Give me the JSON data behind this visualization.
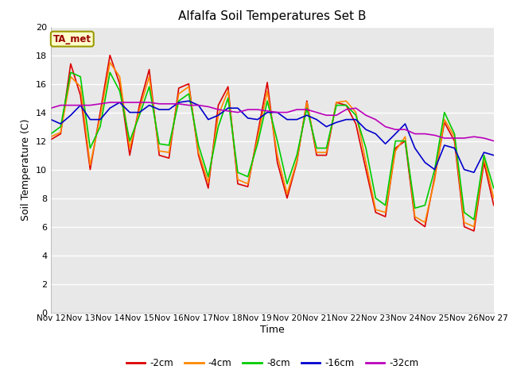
{
  "title": "Alfalfa Soil Temperatures Set B",
  "xlabel": "Time",
  "ylabel": "Soil Temperature (C)",
  "ylim": [
    0,
    20
  ],
  "yticks": [
    0,
    2,
    4,
    6,
    8,
    10,
    12,
    14,
    16,
    18,
    20
  ],
  "fig_bg": "#ffffff",
  "plot_bg": "#e8e8e8",
  "grid_color": "#ffffff",
  "annotation_text": "TA_met",
  "annotation_bg": "#ffffcc",
  "annotation_fg": "#990000",
  "annotation_border": "#999900",
  "x_labels": [
    "Nov 12",
    "Nov 13",
    "Nov 14",
    "Nov 15",
    "Nov 16",
    "Nov 17",
    "Nov 18",
    "Nov 19",
    "Nov 20",
    "Nov 21",
    "Nov 22",
    "Nov 23",
    "Nov 24",
    "Nov 25",
    "Nov 26",
    "Nov 27"
  ],
  "series_order": [
    "-2cm",
    "-4cm",
    "-8cm",
    "-16cm",
    "-32cm"
  ],
  "series": {
    "-2cm": {
      "color": "#dd0000",
      "lw": 1.2,
      "x": [
        0,
        0.33,
        0.67,
        1.0,
        1.33,
        1.67,
        2.0,
        2.33,
        2.67,
        3.0,
        3.33,
        3.67,
        4.0,
        4.33,
        4.67,
        5.0,
        5.33,
        5.67,
        6.0,
        6.33,
        6.67,
        7.0,
        7.33,
        7.67,
        8.0,
        8.33,
        8.67,
        9.0,
        9.33,
        9.67,
        10.0,
        10.33,
        10.67,
        11.0,
        11.33,
        11.67,
        12.0,
        12.33,
        12.67,
        13.0,
        13.33,
        13.67,
        14.0,
        14.33,
        14.67,
        15.0
      ],
      "y": [
        12.1,
        12.5,
        17.4,
        15.2,
        10.0,
        14.0,
        18.0,
        16.0,
        11.0,
        14.5,
        17.0,
        11.0,
        10.8,
        15.7,
        16.0,
        11.0,
        8.7,
        14.5,
        15.8,
        9.0,
        8.8,
        12.5,
        16.1,
        10.5,
        8.0,
        10.5,
        14.8,
        11.0,
        11.0,
        14.7,
        14.5,
        13.2,
        10.0,
        7.0,
        6.7,
        11.5,
        12.0,
        6.5,
        6.0,
        9.5,
        13.3,
        12.0,
        6.0,
        5.7,
        10.5,
        7.5
      ]
    },
    "-4cm": {
      "color": "#ff8800",
      "lw": 1.2,
      "x": [
        0,
        0.33,
        0.67,
        1.0,
        1.33,
        1.67,
        2.0,
        2.33,
        2.67,
        3.0,
        3.33,
        3.67,
        4.0,
        4.33,
        4.67,
        5.0,
        5.33,
        5.67,
        6.0,
        6.33,
        6.67,
        7.0,
        7.33,
        7.67,
        8.0,
        8.33,
        8.67,
        9.0,
        9.33,
        9.67,
        10.0,
        10.33,
        10.67,
        11.0,
        11.33,
        11.67,
        12.0,
        12.33,
        12.67,
        13.0,
        13.33,
        13.67,
        14.0,
        14.33,
        14.67,
        15.0
      ],
      "y": [
        12.3,
        12.6,
        16.5,
        15.8,
        10.3,
        13.7,
        17.5,
        16.5,
        11.5,
        14.2,
        16.5,
        11.3,
        11.2,
        15.3,
        15.8,
        11.2,
        9.1,
        13.8,
        15.5,
        9.3,
        9.0,
        12.2,
        15.5,
        11.0,
        8.3,
        10.6,
        14.7,
        11.2,
        11.2,
        14.7,
        14.8,
        14.0,
        10.5,
        7.2,
        7.0,
        11.3,
        12.3,
        6.7,
        6.3,
        9.3,
        13.5,
        12.3,
        6.3,
        6.0,
        10.8,
        8.0
      ]
    },
    "-8cm": {
      "color": "#00cc00",
      "lw": 1.2,
      "x": [
        0,
        0.33,
        0.67,
        1.0,
        1.33,
        1.67,
        2.0,
        2.33,
        2.67,
        3.0,
        3.33,
        3.67,
        4.0,
        4.33,
        4.67,
        5.0,
        5.33,
        5.67,
        6.0,
        6.33,
        6.67,
        7.0,
        7.33,
        7.67,
        8.0,
        8.33,
        8.67,
        9.0,
        9.33,
        9.67,
        10.0,
        10.33,
        10.67,
        11.0,
        11.33,
        11.67,
        12.0,
        12.33,
        12.67,
        13.0,
        13.33,
        13.67,
        14.0,
        14.33,
        14.67,
        15.0
      ],
      "y": [
        12.5,
        13.0,
        16.8,
        16.5,
        11.5,
        13.0,
        16.8,
        15.5,
        12.0,
        13.8,
        15.8,
        11.8,
        11.7,
        14.8,
        15.3,
        11.7,
        9.5,
        13.0,
        15.0,
        9.8,
        9.5,
        11.8,
        14.8,
        12.0,
        9.0,
        11.0,
        14.3,
        11.5,
        11.5,
        14.5,
        14.5,
        13.8,
        11.5,
        8.0,
        7.5,
        12.0,
        12.0,
        7.3,
        7.5,
        10.0,
        14.0,
        12.5,
        7.0,
        6.5,
        11.0,
        8.7
      ]
    },
    "-16cm": {
      "color": "#0000cc",
      "lw": 1.2,
      "x": [
        0,
        0.33,
        0.67,
        1.0,
        1.33,
        1.67,
        2.0,
        2.33,
        2.67,
        3.0,
        3.33,
        3.67,
        4.0,
        4.33,
        4.67,
        5.0,
        5.33,
        5.67,
        6.0,
        6.33,
        6.67,
        7.0,
        7.33,
        7.67,
        8.0,
        8.33,
        8.67,
        9.0,
        9.33,
        9.67,
        10.0,
        10.33,
        10.67,
        11.0,
        11.33,
        11.67,
        12.0,
        12.33,
        12.67,
        13.0,
        13.33,
        13.67,
        14.0,
        14.33,
        14.67,
        15.0
      ],
      "y": [
        13.5,
        13.2,
        13.8,
        14.5,
        13.5,
        13.5,
        14.3,
        14.7,
        14.0,
        14.0,
        14.5,
        14.2,
        14.2,
        14.7,
        14.8,
        14.5,
        13.5,
        13.8,
        14.3,
        14.3,
        13.6,
        13.5,
        14.0,
        14.0,
        13.5,
        13.5,
        13.8,
        13.5,
        13.0,
        13.3,
        13.5,
        13.5,
        12.8,
        12.5,
        11.8,
        12.5,
        13.2,
        11.5,
        10.5,
        10.0,
        11.7,
        11.5,
        10.0,
        9.8,
        11.2,
        11.0
      ]
    },
    "-32cm": {
      "color": "#bb00bb",
      "lw": 1.2,
      "x": [
        0,
        0.33,
        0.67,
        1.0,
        1.33,
        1.67,
        2.0,
        2.33,
        2.67,
        3.0,
        3.33,
        3.67,
        4.0,
        4.33,
        4.67,
        5.0,
        5.33,
        5.67,
        6.0,
        6.33,
        6.67,
        7.0,
        7.33,
        7.67,
        8.0,
        8.33,
        8.67,
        9.0,
        9.33,
        9.67,
        10.0,
        10.33,
        10.67,
        11.0,
        11.33,
        11.67,
        12.0,
        12.33,
        12.67,
        13.0,
        13.33,
        13.67,
        14.0,
        14.33,
        14.67,
        15.0
      ],
      "y": [
        14.3,
        14.5,
        14.5,
        14.5,
        14.5,
        14.6,
        14.7,
        14.7,
        14.7,
        14.7,
        14.7,
        14.6,
        14.6,
        14.6,
        14.5,
        14.5,
        14.4,
        14.2,
        14.1,
        14.0,
        14.2,
        14.2,
        14.1,
        14.0,
        14.0,
        14.2,
        14.2,
        14.0,
        13.8,
        13.8,
        14.2,
        14.3,
        13.8,
        13.5,
        13.0,
        12.8,
        12.8,
        12.5,
        12.5,
        12.4,
        12.2,
        12.2,
        12.2,
        12.3,
        12.2,
        12.0
      ]
    }
  }
}
